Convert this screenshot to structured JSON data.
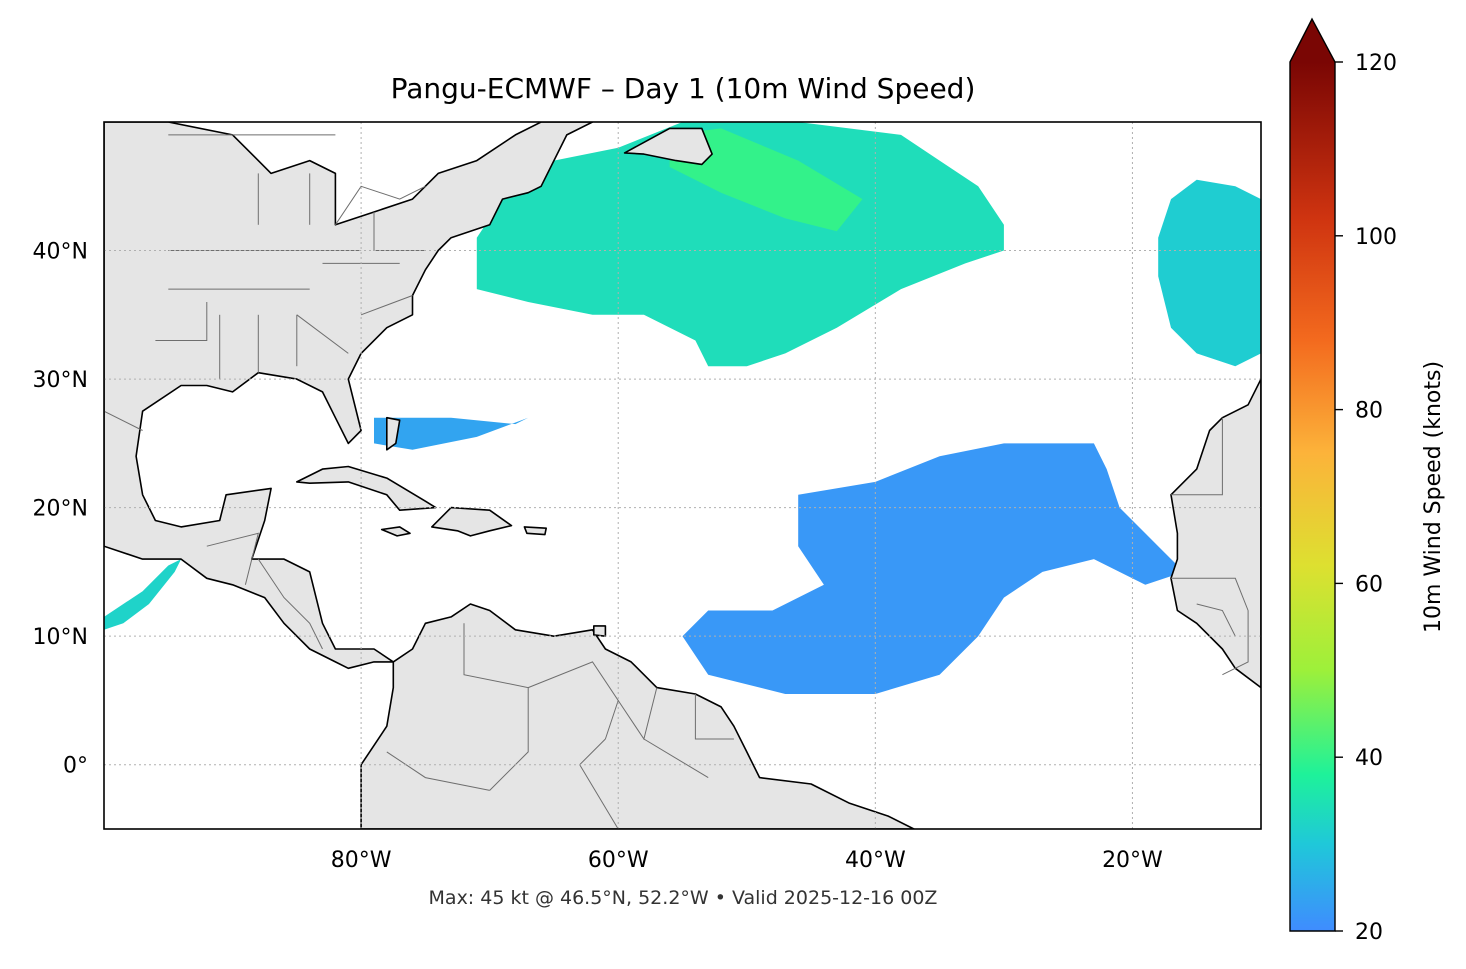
{
  "title": "Pangu-ECMWF – Day 1 (10m Wind Speed)",
  "footer": "Max: 45 kt @ 46.5°N, 52.2°W • Valid 2025-12-16 00Z",
  "map": {
    "lon_range": [
      -100,
      -10
    ],
    "lat_range": [
      -5,
      50
    ],
    "lon_ticks": [
      {
        "value": -80,
        "label": "80°W"
      },
      {
        "value": -60,
        "label": "60°W"
      },
      {
        "value": -40,
        "label": "40°W"
      },
      {
        "value": -20,
        "label": "20°W"
      }
    ],
    "lat_ticks": [
      {
        "value": 40,
        "label": "40°N"
      },
      {
        "value": 30,
        "label": "30°N"
      },
      {
        "value": 20,
        "label": "20°N"
      },
      {
        "value": 10,
        "label": "10°N"
      },
      {
        "value": 0,
        "label": "0°"
      }
    ],
    "colors": {
      "land": "#e5e5e5",
      "coast": "#000000",
      "border": "#6e6e6e",
      "grid": "#b0b0b0"
    }
  },
  "colorbar": {
    "label": "10m Wind Speed (knots)",
    "range": [
      20,
      120
    ],
    "ticks": [
      {
        "value": 20,
        "label": "20"
      },
      {
        "value": 40,
        "label": "40"
      },
      {
        "value": 60,
        "label": "60"
      },
      {
        "value": 80,
        "label": "80"
      },
      {
        "value": 100,
        "label": "100"
      },
      {
        "value": 120,
        "label": "120"
      }
    ],
    "stops": [
      {
        "v": 20,
        "c": "#3f8cff"
      },
      {
        "v": 30,
        "c": "#1fc8d9"
      },
      {
        "v": 38,
        "c": "#1ef29a"
      },
      {
        "v": 50,
        "c": "#9df03a"
      },
      {
        "v": 62,
        "c": "#dde030"
      },
      {
        "v": 75,
        "c": "#fcb33a"
      },
      {
        "v": 88,
        "c": "#f36a1e"
      },
      {
        "v": 102,
        "c": "#cf3410"
      },
      {
        "v": 120,
        "c": "#7a0604"
      }
    ],
    "extend": "max"
  },
  "wind_fields": [
    {
      "name": "nw-atlantic-jet",
      "speed_kt": 34,
      "polygon": [
        [
          -71,
          37
        ],
        [
          -71,
          41
        ],
        [
          -69,
          44
        ],
        [
          -65,
          47
        ],
        [
          -60,
          48
        ],
        [
          -55,
          50
        ],
        [
          -46,
          50
        ],
        [
          -38,
          49
        ],
        [
          -35,
          47
        ],
        [
          -32,
          45
        ],
        [
          -30,
          42
        ],
        [
          -30,
          40
        ],
        [
          -33,
          39
        ],
        [
          -38,
          37
        ],
        [
          -43,
          34
        ],
        [
          -47,
          32
        ],
        [
          -50,
          31
        ],
        [
          -53,
          31
        ],
        [
          -54,
          33
        ],
        [
          -58,
          35
        ],
        [
          -62,
          35
        ],
        [
          -67,
          36
        ]
      ]
    },
    {
      "name": "nw-atlantic-core",
      "speed_kt": 40,
      "polygon": [
        [
          -56,
          49
        ],
        [
          -52,
          49.5
        ],
        [
          -46,
          47
        ],
        [
          -41,
          44
        ],
        [
          -43,
          41.5
        ],
        [
          -47,
          42.5
        ],
        [
          -52,
          44.5
        ],
        [
          -56,
          46.5
        ]
      ]
    },
    {
      "name": "ne-atlantic",
      "speed_kt": 31,
      "polygon": [
        [
          -18,
          41
        ],
        [
          -17,
          44
        ],
        [
          -15,
          45.5
        ],
        [
          -12,
          45
        ],
        [
          -10,
          44
        ],
        [
          -10,
          32
        ],
        [
          -12,
          31
        ],
        [
          -15,
          32
        ],
        [
          -17,
          34
        ],
        [
          -18,
          38
        ]
      ]
    },
    {
      "name": "bahamas-jet",
      "speed_kt": 24,
      "polygon": [
        [
          -79,
          27
        ],
        [
          -73,
          27
        ],
        [
          -68,
          26.5
        ],
        [
          -67,
          27
        ],
        [
          -71,
          25.5
        ],
        [
          -76,
          24.5
        ],
        [
          -79,
          25
        ]
      ]
    },
    {
      "name": "central-atlantic-trades",
      "speed_kt": 22,
      "polygon": [
        [
          -46,
          19
        ],
        [
          -46,
          21
        ],
        [
          -40,
          22
        ],
        [
          -35,
          24
        ],
        [
          -30,
          25
        ],
        [
          -23,
          25
        ],
        [
          -22,
          23
        ],
        [
          -21,
          20
        ],
        [
          -18,
          17
        ],
        [
          -16,
          15
        ],
        [
          -19,
          14
        ],
        [
          -23,
          16
        ],
        [
          -27,
          15
        ],
        [
          -30,
          13
        ],
        [
          -32,
          10
        ],
        [
          -35,
          7
        ],
        [
          -40,
          5.5
        ],
        [
          -47,
          5.5
        ],
        [
          -53,
          7
        ],
        [
          -55,
          10
        ],
        [
          -53,
          12
        ],
        [
          -48,
          12
        ],
        [
          -44,
          14
        ],
        [
          -46,
          17
        ]
      ]
    },
    {
      "name": "pacific-gap-wind",
      "speed_kt": 32,
      "polygon": [
        [
          -100,
          10.5
        ],
        [
          -100,
          11.5
        ],
        [
          -97,
          13.5
        ],
        [
          -95,
          15.5
        ],
        [
          -94,
          16
        ],
        [
          -94.5,
          15
        ],
        [
          -96.5,
          12.5
        ],
        [
          -98.5,
          11
        ]
      ]
    }
  ],
  "land_masses": [
    {
      "name": "north-america",
      "polygon": [
        [
          -100,
          50
        ],
        [
          -95,
          50
        ],
        [
          -90,
          49
        ],
        [
          -87,
          46
        ],
        [
          -84,
          47
        ],
        [
          -82,
          46
        ],
        [
          -82,
          42
        ],
        [
          -79,
          43
        ],
        [
          -76,
          44
        ],
        [
          -74,
          46
        ],
        [
          -71,
          47
        ],
        [
          -68,
          49
        ],
        [
          -66,
          50
        ],
        [
          -62,
          50
        ],
        [
          -64,
          49
        ],
        [
          -66,
          45
        ],
        [
          -67,
          44.5
        ],
        [
          -69,
          44
        ],
        [
          -70,
          42
        ],
        [
          -73,
          41
        ],
        [
          -74,
          40
        ],
        [
          -75,
          38.5
        ],
        [
          -76,
          36.5
        ],
        [
          -76,
          35
        ],
        [
          -78,
          34
        ],
        [
          -80,
          32
        ],
        [
          -81,
          30
        ],
        [
          -80.5,
          28
        ],
        [
          -80,
          26
        ],
        [
          -81,
          25
        ],
        [
          -82,
          27
        ],
        [
          -83,
          29
        ],
        [
          -85,
          30
        ],
        [
          -88,
          30.5
        ],
        [
          -90,
          29
        ],
        [
          -92,
          29.5
        ],
        [
          -94,
          29.5
        ],
        [
          -97,
          27.5
        ],
        [
          -97.5,
          24
        ],
        [
          -97,
          21
        ],
        [
          -96,
          19
        ],
        [
          -94,
          18.5
        ],
        [
          -91,
          19
        ],
        [
          -90.5,
          21
        ],
        [
          -87,
          21.5
        ],
        [
          -87.5,
          19
        ],
        [
          -88.5,
          16
        ],
        [
          -86,
          16
        ],
        [
          -84,
          15
        ],
        [
          -83,
          11
        ],
        [
          -82,
          9
        ],
        [
          -79,
          9
        ],
        [
          -77.5,
          8
        ],
        [
          -79,
          8
        ],
        [
          -81,
          7.5
        ],
        [
          -82,
          8
        ],
        [
          -84,
          9
        ],
        [
          -86,
          11
        ],
        [
          -87.5,
          13
        ],
        [
          -90,
          14
        ],
        [
          -92,
          14.5
        ],
        [
          -94,
          16
        ],
        [
          -97,
          16
        ],
        [
          -100,
          17
        ]
      ]
    },
    {
      "name": "south-america",
      "polygon": [
        [
          -77,
          -5
        ],
        [
          -80,
          -5
        ],
        [
          -80,
          -2
        ],
        [
          -80,
          0
        ],
        [
          -79,
          1.5
        ],
        [
          -78,
          3
        ],
        [
          -77.5,
          6
        ],
        [
          -77.5,
          8
        ],
        [
          -76,
          9
        ],
        [
          -75,
          11
        ],
        [
          -73,
          11.5
        ],
        [
          -71.5,
          12.5
        ],
        [
          -70,
          12
        ],
        [
          -68,
          10.5
        ],
        [
          -65,
          10
        ],
        [
          -62,
          10.5
        ],
        [
          -61,
          9
        ],
        [
          -59,
          8
        ],
        [
          -57,
          6
        ],
        [
          -54,
          5.5
        ],
        [
          -52,
          4.5
        ],
        [
          -51,
          3
        ],
        [
          -50,
          1
        ],
        [
          -49,
          -1
        ],
        [
          -45,
          -1.5
        ],
        [
          -42,
          -3
        ],
        [
          -39,
          -4
        ],
        [
          -37,
          -5
        ]
      ]
    },
    {
      "name": "africa",
      "polygon": [
        [
          -10,
          30
        ],
        [
          -11,
          28
        ],
        [
          -13,
          27
        ],
        [
          -14,
          26
        ],
        [
          -15,
          23
        ],
        [
          -17,
          21
        ],
        [
          -16.5,
          18
        ],
        [
          -16.5,
          16
        ],
        [
          -17,
          14.5
        ],
        [
          -16.5,
          12
        ],
        [
          -15,
          11
        ],
        [
          -14,
          10
        ],
        [
          -13,
          9
        ],
        [
          -12,
          7.5
        ],
        [
          -10,
          6
        ],
        [
          -10,
          30
        ]
      ]
    },
    {
      "name": "cuba",
      "polygon": [
        [
          -85,
          22
        ],
        [
          -83,
          23
        ],
        [
          -81,
          23.2
        ],
        [
          -78,
          22.3
        ],
        [
          -75,
          20.5
        ],
        [
          -74.2,
          20
        ],
        [
          -77,
          19.8
        ],
        [
          -78,
          21
        ],
        [
          -81,
          22
        ],
        [
          -84,
          21.9
        ]
      ]
    },
    {
      "name": "hispaniola",
      "polygon": [
        [
          -74.5,
          18.5
        ],
        [
          -73,
          20
        ],
        [
          -70,
          19.8
        ],
        [
          -68.3,
          18.6
        ],
        [
          -70,
          18.2
        ],
        [
          -71.5,
          17.8
        ],
        [
          -72.5,
          18.2
        ]
      ]
    },
    {
      "name": "jamaica",
      "polygon": [
        [
          -78.4,
          18.3
        ],
        [
          -77,
          18.5
        ],
        [
          -76.2,
          18
        ],
        [
          -77.2,
          17.8
        ]
      ]
    },
    {
      "name": "puerto-rico",
      "polygon": [
        [
          -67.3,
          18.5
        ],
        [
          -65.6,
          18.4
        ],
        [
          -65.7,
          17.9
        ],
        [
          -67.1,
          18
        ]
      ]
    },
    {
      "name": "newfoundland",
      "polygon": [
        [
          -59.5,
          47.6
        ],
        [
          -56,
          49.5
        ],
        [
          -53.5,
          49.5
        ],
        [
          -52.7,
          47.5
        ],
        [
          -53.5,
          46.7
        ],
        [
          -55.5,
          47
        ],
        [
          -58,
          47.5
        ]
      ]
    },
    {
      "name": "florida-keys-islands",
      "polygon": [
        [
          -78,
          27
        ],
        [
          -77,
          26.8
        ],
        [
          -77.3,
          25
        ],
        [
          -78,
          24.5
        ]
      ]
    },
    {
      "name": "trinidad",
      "polygon": [
        [
          -61.9,
          10.8
        ],
        [
          -61,
          10.8
        ],
        [
          -61,
          10
        ],
        [
          -61.9,
          10.1
        ]
      ]
    }
  ],
  "borders": [
    [
      [
        -95,
        49
      ],
      [
        -82,
        49
      ]
    ],
    [
      [
        -82,
        42
      ],
      [
        -80,
        45
      ],
      [
        -77,
        44
      ],
      [
        -75,
        45
      ]
    ],
    [
      [
        -97,
        26
      ],
      [
        -103,
        29
      ]
    ],
    [
      [
        -91,
        30
      ],
      [
        -91,
        35
      ]
    ],
    [
      [
        -85,
        35
      ],
      [
        -85,
        31
      ]
    ],
    [
      [
        -88,
        35
      ],
      [
        -88,
        30.5
      ]
    ],
    [
      [
        -95,
        37
      ],
      [
        -84,
        37
      ]
    ],
    [
      [
        -95,
        40
      ],
      [
        -80,
        40
      ]
    ],
    [
      [
        -88,
        42
      ],
      [
        -88,
        46
      ]
    ],
    [
      [
        -84,
        42
      ],
      [
        -84,
        46
      ]
    ],
    [
      [
        -79,
        43
      ],
      [
        -79,
        40
      ],
      [
        -75,
        40
      ]
    ],
    [
      [
        -77,
        39
      ],
      [
        -83,
        39
      ]
    ],
    [
      [
        -96,
        33
      ],
      [
        -92,
        33
      ],
      [
        -92,
        36
      ]
    ],
    [
      [
        -80,
        35
      ],
      [
        -76,
        36.5
      ]
    ],
    [
      [
        -81,
        32
      ],
      [
        -85,
        35
      ]
    ],
    [
      [
        -92,
        17
      ],
      [
        -88,
        18
      ],
      [
        -89,
        14
      ]
    ],
    [
      [
        -88,
        16
      ],
      [
        -86,
        13
      ],
      [
        -84,
        11
      ],
      [
        -83,
        9
      ]
    ],
    [
      [
        -72,
        11
      ],
      [
        -72,
        7
      ],
      [
        -67,
        6
      ],
      [
        -67,
        1
      ],
      [
        -70,
        -2
      ]
    ],
    [
      [
        -67,
        6
      ],
      [
        -62,
        8
      ],
      [
        -60,
        5
      ],
      [
        -61,
        2
      ]
    ],
    [
      [
        -60,
        5
      ],
      [
        -58,
        2
      ],
      [
        -57,
        6
      ]
    ],
    [
      [
        -54,
        5.5
      ],
      [
        -54,
        2
      ],
      [
        -51,
        2
      ]
    ],
    [
      [
        -70,
        -2
      ],
      [
        -75,
        -1
      ],
      [
        -78,
        1
      ]
    ],
    [
      [
        -60,
        -5
      ],
      [
        -63,
        0
      ],
      [
        -61,
        2
      ]
    ],
    [
      [
        -58,
        2
      ],
      [
        -53,
        -1
      ]
    ],
    [
      [
        -17,
        21
      ],
      [
        -13,
        21
      ],
      [
        -13,
        27
      ]
    ],
    [
      [
        -17,
        14.5
      ],
      [
        -12,
        14.5
      ],
      [
        -11,
        12
      ]
    ],
    [
      [
        -15,
        12.5
      ],
      [
        -13,
        12
      ],
      [
        -12,
        10
      ]
    ],
    [
      [
        -11,
        12
      ],
      [
        -11,
        8
      ],
      [
        -13,
        7
      ]
    ]
  ]
}
